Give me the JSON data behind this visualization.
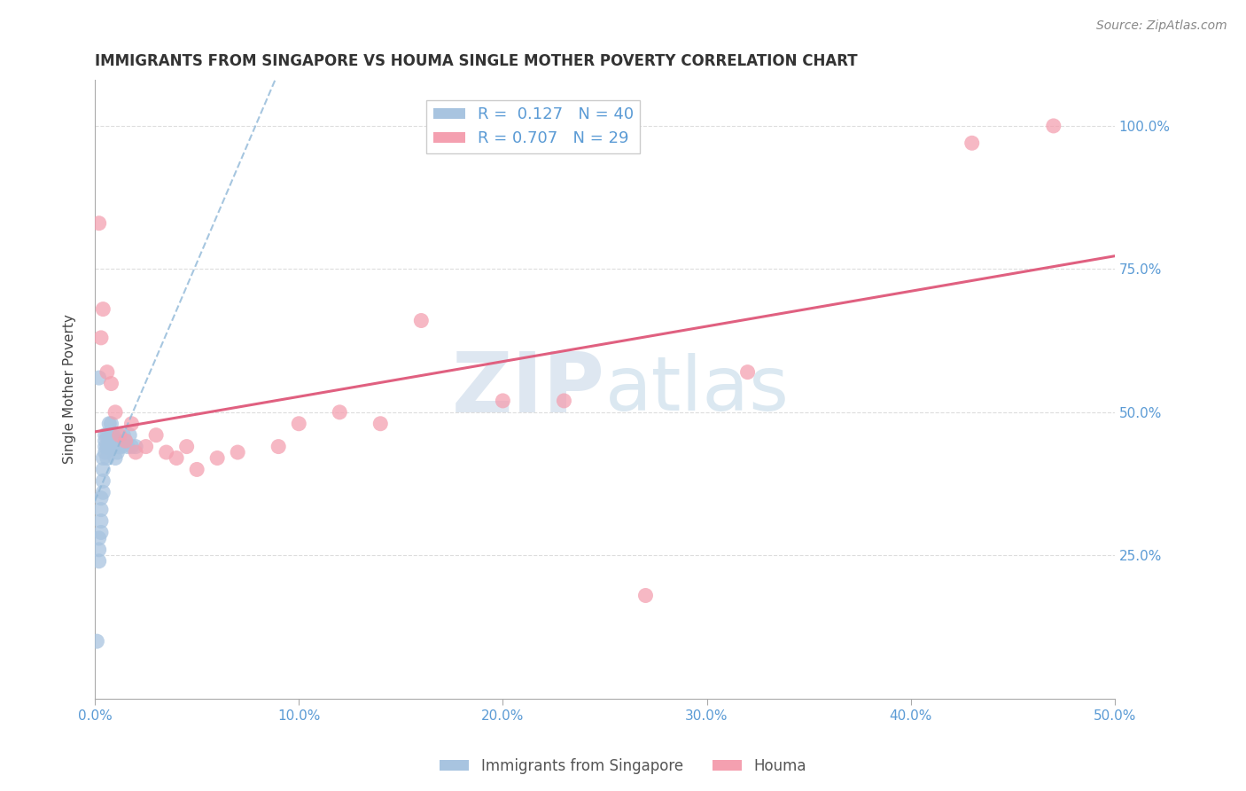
{
  "title": "IMMIGRANTS FROM SINGAPORE VS HOUMA SINGLE MOTHER POVERTY CORRELATION CHART",
  "source": "Source: ZipAtlas.com",
  "ylabel": "Single Mother Poverty",
  "watermark_zip": "ZIP",
  "watermark_atlas": "atlas",
  "xmin": 0.0,
  "xmax": 0.5,
  "ymin": 0.0,
  "ymax": 1.08,
  "xticks": [
    0.0,
    0.1,
    0.2,
    0.3,
    0.4,
    0.5
  ],
  "xtick_labels": [
    "0.0%",
    "10.0%",
    "20.0%",
    "30.0%",
    "40.0%",
    "50.0%"
  ],
  "ytick_labels": [
    "25.0%",
    "50.0%",
    "75.0%",
    "100.0%"
  ],
  "ytick_vals": [
    0.25,
    0.5,
    0.75,
    1.0
  ],
  "legend1_label": "R =  0.127   N = 40",
  "legend2_label": "R = 0.707   N = 29",
  "legend_label1_bottom": "Immigrants from Singapore",
  "legend_label2_bottom": "Houma",
  "blue_color": "#a8c4e0",
  "pink_color": "#f4a0b0",
  "blue_line_color": "#90b8d8",
  "pink_line_color": "#e06080",
  "blue_x": [
    0.001,
    0.002,
    0.002,
    0.002,
    0.003,
    0.003,
    0.003,
    0.003,
    0.004,
    0.004,
    0.004,
    0.004,
    0.005,
    0.005,
    0.005,
    0.005,
    0.006,
    0.006,
    0.006,
    0.007,
    0.007,
    0.007,
    0.008,
    0.008,
    0.008,
    0.009,
    0.009,
    0.01,
    0.01,
    0.011,
    0.011,
    0.012,
    0.013,
    0.014,
    0.015,
    0.016,
    0.017,
    0.018,
    0.02,
    0.002
  ],
  "blue_y": [
    0.1,
    0.24,
    0.26,
    0.28,
    0.29,
    0.31,
    0.33,
    0.35,
    0.36,
    0.38,
    0.4,
    0.42,
    0.43,
    0.44,
    0.45,
    0.46,
    0.42,
    0.44,
    0.46,
    0.44,
    0.46,
    0.48,
    0.44,
    0.46,
    0.48,
    0.44,
    0.46,
    0.42,
    0.44,
    0.43,
    0.45,
    0.44,
    0.44,
    0.46,
    0.45,
    0.44,
    0.46,
    0.44,
    0.44,
    0.56
  ],
  "pink_x": [
    0.002,
    0.003,
    0.004,
    0.006,
    0.008,
    0.01,
    0.012,
    0.015,
    0.018,
    0.02,
    0.025,
    0.03,
    0.035,
    0.04,
    0.045,
    0.05,
    0.06,
    0.07,
    0.09,
    0.1,
    0.12,
    0.14,
    0.16,
    0.2,
    0.23,
    0.27,
    0.32,
    0.43,
    0.47
  ],
  "pink_y": [
    0.83,
    0.63,
    0.68,
    0.57,
    0.55,
    0.5,
    0.46,
    0.45,
    0.48,
    0.43,
    0.44,
    0.46,
    0.43,
    0.42,
    0.44,
    0.4,
    0.42,
    0.43,
    0.44,
    0.48,
    0.5,
    0.48,
    0.66,
    0.52,
    0.52,
    0.18,
    0.57,
    0.97,
    1.0
  ]
}
